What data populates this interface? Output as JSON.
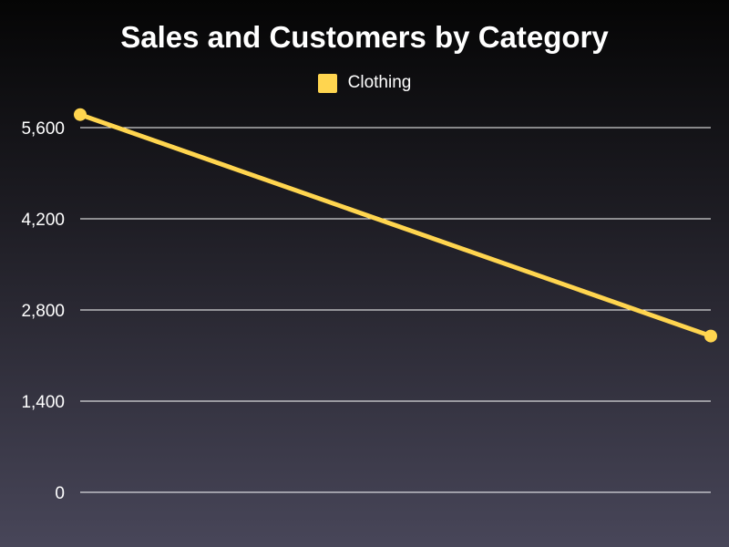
{
  "chart_data": {
    "type": "line",
    "title": "Sales and Customers by Category",
    "xlabel": "",
    "ylabel": "",
    "x": [
      "",
      ""
    ],
    "series": [
      {
        "name": "Clothing",
        "color": "#ffd54f",
        "values": [
          5800,
          2400
        ]
      }
    ],
    "ylim": [
      0,
      5600
    ],
    "yticks": [
      0,
      1400,
      2800,
      4200,
      5600
    ],
    "ytick_labels": [
      "0",
      "1,400",
      "2,800",
      "4,200",
      "5,600"
    ],
    "grid": true,
    "legend": "top-center"
  }
}
